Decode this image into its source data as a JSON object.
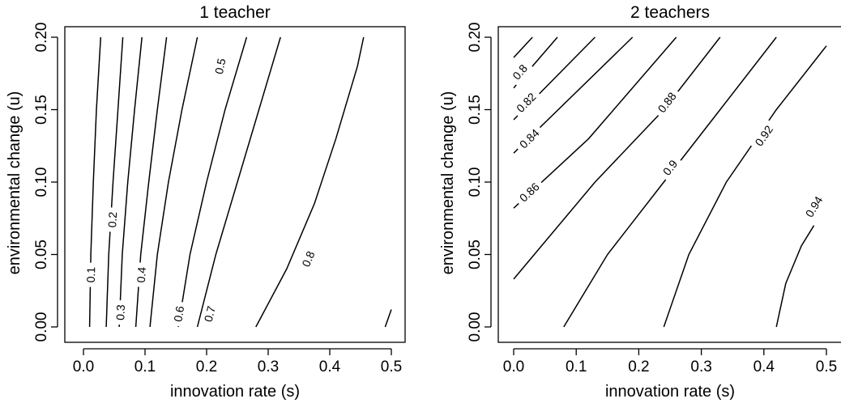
{
  "chart_data": [
    {
      "type": "contour",
      "title": "1 teacher",
      "xlabel": "innovation rate (s)",
      "ylabel": "environmental change (u)",
      "xlim": [
        0.0,
        0.5
      ],
      "ylim": [
        0.0,
        0.2
      ],
      "xticks": [
        "0.0",
        "0.1",
        "0.2",
        "0.3",
        "0.4",
        "0.5"
      ],
      "yticks": [
        "0.00",
        "0.05",
        "0.10",
        "0.15",
        "0.20"
      ],
      "contours": [
        {
          "level": "0.1",
          "points": [
            [
              0.01,
              0.0
            ],
            [
              0.012,
              0.05
            ],
            [
              0.016,
              0.1
            ],
            [
              0.021,
              0.15
            ],
            [
              0.028,
              0.2
            ]
          ],
          "label_at": [
            0.012,
            0.036
          ]
        },
        {
          "level": "0.2",
          "points": [
            [
              0.037,
              0.0
            ],
            [
              0.041,
              0.05
            ],
            [
              0.048,
              0.1
            ],
            [
              0.056,
              0.15
            ],
            [
              0.064,
              0.2
            ]
          ],
          "label_at": [
            0.047,
            0.074
          ]
        },
        {
          "level": "0.3",
          "points": [
            [
              0.058,
              0.0
            ],
            [
              0.063,
              0.05
            ],
            [
              0.072,
              0.1
            ],
            [
              0.083,
              0.15
            ],
            [
              0.095,
              0.2
            ]
          ],
          "label_at": [
            0.06,
            0.01
          ]
        },
        {
          "level": "0.4",
          "points": [
            [
              0.085,
              0.0
            ],
            [
              0.093,
              0.05
            ],
            [
              0.106,
              0.1
            ],
            [
              0.12,
              0.15
            ],
            [
              0.135,
              0.2
            ]
          ],
          "label_at": [
            0.094,
            0.036
          ]
        },
        {
          "level": "0.5",
          "points": [
            [
              0.108,
              0.0
            ],
            [
              0.12,
              0.05
            ],
            [
              0.138,
              0.1
            ],
            [
              0.16,
              0.15
            ],
            [
              0.185,
              0.2
            ]
          ],
          "label_at": [
            0.222,
            0.18
          ]
        },
        {
          "level": "0.6",
          "points": [
            [
              0.154,
              0.0
            ],
            [
              0.173,
              0.05
            ],
            [
              0.2,
              0.1
            ],
            [
              0.23,
              0.15
            ],
            [
              0.265,
              0.2
            ]
          ],
          "label_at": [
            0.155,
            0.009
          ]
        },
        {
          "level": "0.7",
          "points": [
            [
              0.185,
              0.0
            ],
            [
              0.215,
              0.05
            ],
            [
              0.25,
              0.1
            ],
            [
              0.285,
              0.15
            ],
            [
              0.32,
              0.2
            ]
          ],
          "label_at": [
            0.205,
            0.009
          ]
        },
        {
          "level": "0.8",
          "points": [
            [
              0.28,
              0.0
            ],
            [
              0.33,
              0.04
            ],
            [
              0.375,
              0.085
            ],
            [
              0.41,
              0.13
            ],
            [
              0.445,
              0.18
            ],
            [
              0.455,
              0.2
            ]
          ],
          "label_at": [
            0.365,
            0.047
          ]
        },
        {
          "level": "",
          "points": [
            [
              0.49,
              0.0
            ],
            [
              0.5,
              0.012
            ]
          ],
          "label_at": null
        }
      ]
    },
    {
      "type": "contour",
      "title": "2 teachers",
      "xlabel": "innovation rate (s)",
      "ylabel": "environmental change (u)",
      "xlim": [
        0.0,
        0.5
      ],
      "ylim": [
        0.0,
        0.2
      ],
      "xticks": [
        "0.0",
        "0.1",
        "0.2",
        "0.3",
        "0.4",
        "0.5"
      ],
      "yticks": [
        "0.00",
        "0.05",
        "0.10",
        "0.15",
        "0.20"
      ],
      "contours": [
        {
          "level": "",
          "points": [
            [
              0.0,
              0.186
            ],
            [
              0.03,
              0.2
            ]
          ],
          "label_at": null
        },
        {
          "level": "0.8",
          "points": [
            [
              0.0,
              0.165
            ],
            [
              0.07,
              0.2
            ]
          ],
          "label_at": [
            0.01,
            0.176
          ]
        },
        {
          "level": "0.82",
          "points": [
            [
              0.0,
              0.143
            ],
            [
              0.13,
              0.2
            ]
          ],
          "label_at": [
            0.02,
            0.155
          ]
        },
        {
          "level": "0.84",
          "points": [
            [
              0.0,
              0.12
            ],
            [
              0.19,
              0.2
            ]
          ],
          "label_at": [
            0.025,
            0.13
          ]
        },
        {
          "level": "0.86",
          "points": [
            [
              0.0,
              0.082
            ],
            [
              0.12,
              0.13
            ],
            [
              0.26,
              0.2
            ]
          ],
          "label_at": [
            0.025,
            0.093
          ]
        },
        {
          "level": "0.88",
          "points": [
            [
              0.0,
              0.033
            ],
            [
              0.13,
              0.1
            ],
            [
              0.24,
              0.15
            ],
            [
              0.33,
              0.2
            ]
          ],
          "label_at": [
            0.245,
            0.155
          ]
        },
        {
          "level": "0.9",
          "points": [
            [
              0.08,
              0.0
            ],
            [
              0.15,
              0.05
            ],
            [
              0.24,
              0.1
            ],
            [
              0.33,
              0.15
            ],
            [
              0.42,
              0.2
            ]
          ],
          "label_at": [
            0.25,
            0.11
          ]
        },
        {
          "level": "0.92",
          "points": [
            [
              0.24,
              0.0
            ],
            [
              0.28,
              0.05
            ],
            [
              0.34,
              0.1
            ],
            [
              0.42,
              0.15
            ],
            [
              0.5,
              0.194
            ]
          ],
          "label_at": [
            0.4,
            0.132
          ]
        },
        {
          "level": "0.94",
          "points": [
            [
              0.42,
              0.0
            ],
            [
              0.435,
              0.03
            ],
            [
              0.46,
              0.056
            ],
            [
              0.48,
              0.07
            ]
          ],
          "label_at": [
            0.48,
            0.083
          ]
        }
      ]
    }
  ]
}
